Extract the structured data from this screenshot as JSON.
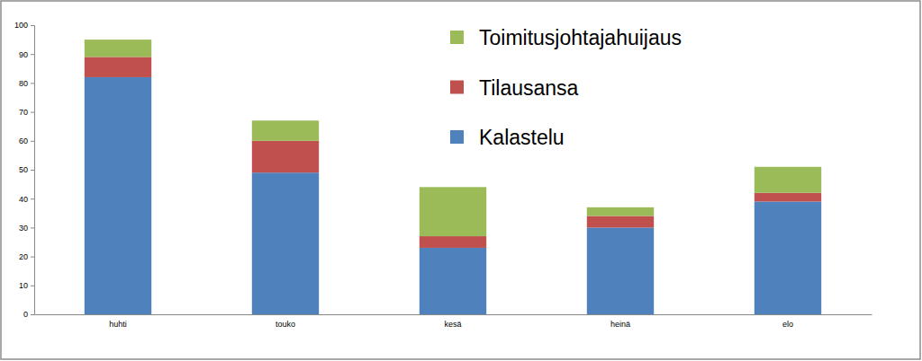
{
  "chart_data": {
    "type": "bar",
    "stacked": true,
    "categories": [
      "huhti",
      "touko",
      "kesä",
      "heinä",
      "elo"
    ],
    "series": [
      {
        "name": "Kalastelu",
        "color": "#4f81bd",
        "values": [
          82,
          49,
          23,
          30,
          39
        ]
      },
      {
        "name": "Tilausansa",
        "color": "#c0504d",
        "values": [
          7,
          11,
          4,
          4,
          3
        ]
      },
      {
        "name": "Toimitusjohtajahuijaus",
        "color": "#9bbb59",
        "values": [
          6,
          7,
          17,
          3,
          9
        ]
      }
    ],
    "ylim": [
      0,
      100
    ],
    "yticks": [
      0,
      10,
      20,
      30,
      40,
      50,
      60,
      70,
      80,
      90,
      100
    ],
    "grid": false,
    "legend": "upper right"
  }
}
